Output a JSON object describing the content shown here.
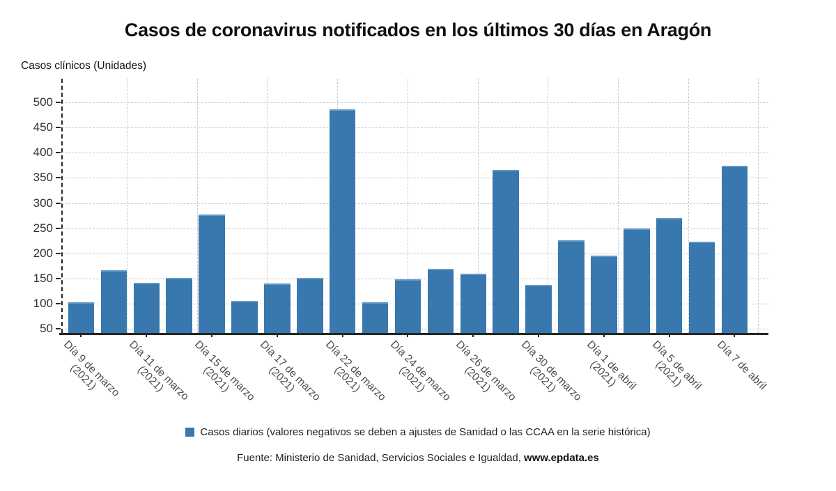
{
  "title": "Casos de coronavirus notificados en los últimos 30 días en Aragón",
  "y_unit_label": "Casos clínicos (Unidades)",
  "legend": {
    "label": "Casos diarios (valores negativos se deben a ajustes de Sanidad o las CCAA en la serie histórica)"
  },
  "footer": {
    "source_text": "Fuente: Ministerio de Sanidad, Servicios Sociales e Igualdad, ",
    "source_link": "www.epdata.es"
  },
  "colors": {
    "bar": "#3878ae",
    "grid": "#c9c9c9",
    "axis": "#262626",
    "ytick_text": "#333333",
    "xlabel_text": "#4d4d4d",
    "title_text": "#111111"
  },
  "chart_data": {
    "type": "bar",
    "title": "Casos de coronavirus notificados en los últimos 30 días en Aragón",
    "xlabel": "",
    "ylabel": "Casos clínicos (Unidades)",
    "ylim": [
      42,
      545
    ],
    "yticks": [
      50,
      100,
      150,
      200,
      250,
      300,
      350,
      400,
      450,
      500
    ],
    "grid": true,
    "legend_position": "bottom",
    "series_name": "Casos diarios",
    "bars": [
      {
        "label": "Día 9 de marzo",
        "year": "(2021)",
        "value": 103
      },
      {
        "label": "",
        "year": "",
        "value": 167
      },
      {
        "label": "Día 11 de marzo",
        "year": "(2021)",
        "value": 142
      },
      {
        "label": "",
        "year": "",
        "value": 151
      },
      {
        "label": "Día 15 de marzo",
        "year": "(2021)",
        "value": 277
      },
      {
        "label": "",
        "year": "",
        "value": 105
      },
      {
        "label": "Día 17 de marzo",
        "year": "(2021)",
        "value": 140
      },
      {
        "label": "",
        "year": "",
        "value": 152
      },
      {
        "label": "Día 22 de marzo",
        "year": "(2021)",
        "value": 486
      },
      {
        "label": "",
        "year": "",
        "value": 103
      },
      {
        "label": "Día 24 de marzo",
        "year": "(2021)",
        "value": 149
      },
      {
        "label": "",
        "year": "",
        "value": 170
      },
      {
        "label": "Día 26 de marzo",
        "year": "(2021)",
        "value": 160
      },
      {
        "label": "",
        "year": "",
        "value": 366
      },
      {
        "label": "Día 30 de marzo",
        "year": "(2021)",
        "value": 137
      },
      {
        "label": "",
        "year": "",
        "value": 226
      },
      {
        "label": "Día 1 de abril",
        "year": "(2021)",
        "value": 195
      },
      {
        "label": "",
        "year": "",
        "value": 249
      },
      {
        "label": "Día 5 de abril",
        "year": "(2021)",
        "value": 271
      },
      {
        "label": "",
        "year": "",
        "value": 224
      },
      {
        "label": "Día 7 de abril",
        "year": "",
        "value": 374
      }
    ]
  }
}
